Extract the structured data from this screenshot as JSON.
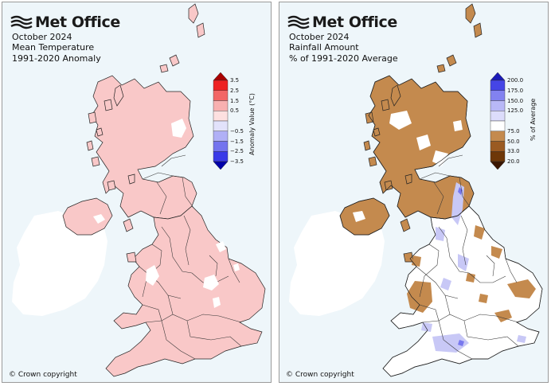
{
  "left": {
    "logo_text": "Met Office",
    "title_lines": [
      "October 2024",
      "Mean Temperature",
      "1991-2020 Anomaly"
    ],
    "legend": {
      "title": "Anomaly Value (°C)",
      "ticks": [
        "3.5",
        "2.5",
        "1.5",
        "0.5",
        "−0.5",
        "−1.5",
        "−2.5",
        "−3.5"
      ],
      "colors": [
        "#ee2222",
        "#f26666",
        "#f8b0b0",
        "#fde0e0",
        "#e2e2fb",
        "#b0b0f6",
        "#7474ee",
        "#3a3ae8"
      ],
      "cap_top": "#aa0000",
      "cap_bottom": "#0000aa"
    },
    "map_colors": {
      "main": "#f9c8c8",
      "light": "#fde3e3",
      "white": "#ffffff",
      "ireland": "#ffffff"
    },
    "copyright": "© Crown copyright"
  },
  "right": {
    "logo_text": "Met Office",
    "title_lines": [
      "October 2024",
      "Rainfall Amount",
      "% of 1991-2020 Average"
    ],
    "legend": {
      "title": "% of Average",
      "ticks": [
        "200.0",
        "175.0",
        "150.0",
        "125.0",
        "75.0",
        "50.0",
        "33.0",
        "20.0"
      ],
      "colors": [
        "#4545e6",
        "#8282f0",
        "#b8b8f7",
        "#dcdcfb",
        "#ffffff",
        "#c48a4e",
        "#9a5a22",
        "#6e3708"
      ],
      "cap_top": "#1a1ab8",
      "cap_bottom": "#3b1600"
    },
    "map_colors": {
      "main": "#ffffff",
      "dry": "#c48a4e",
      "wet": "#c8c8f6",
      "ireland": "#ffffff"
    },
    "copyright": "© Crown copyright"
  }
}
